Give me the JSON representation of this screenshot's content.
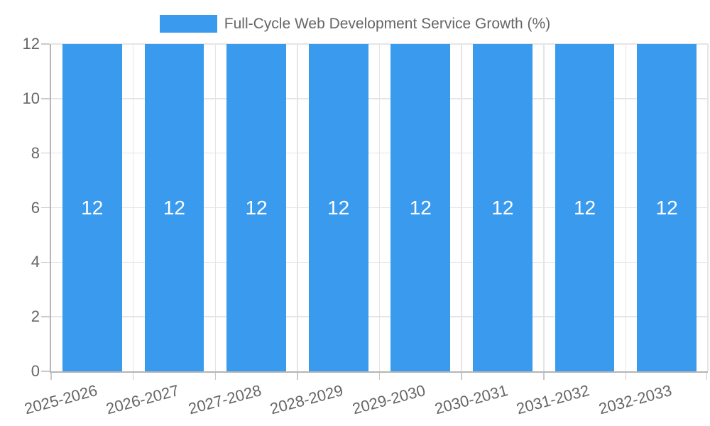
{
  "chart_data": {
    "type": "bar",
    "title": "Full-Cycle Web Development Service Growth (%)",
    "categories": [
      "2025-2026",
      "2026-2027",
      "2027-2028",
      "2028-2029",
      "2029-2030",
      "2030-2031",
      "2031-2032",
      "2032-2033"
    ],
    "values": [
      12,
      12,
      12,
      12,
      12,
      12,
      12,
      12
    ],
    "xlabel": "",
    "ylabel": "",
    "ylim": [
      0,
      12
    ],
    "yticks": [
      0,
      2,
      4,
      6,
      8,
      10,
      12
    ],
    "grid": true,
    "legend": {
      "position": "top",
      "label": "Full-Cycle Web Development Service Growth (%)"
    },
    "colors": {
      "bar": "#399AEE",
      "bar_label": "#FFFFFF",
      "tick_label": "#666666",
      "tick_mark": "#C9C9C9",
      "grid": "#E5E5E5",
      "axis": "#B5B5B5",
      "background": "#FFFFFF"
    }
  }
}
